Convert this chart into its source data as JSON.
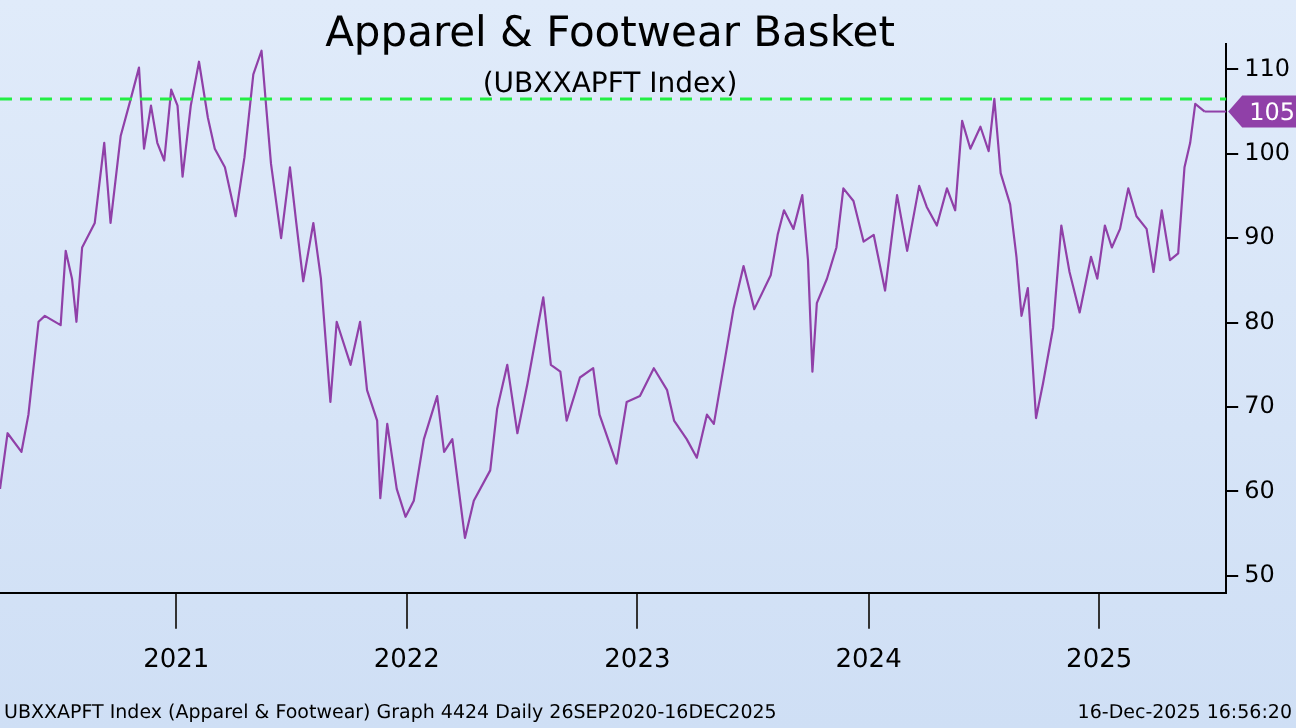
{
  "chart_data": {
    "type": "line",
    "title": "Apparel & Footwear Basket",
    "subtitle": "(UBXXAPFT Index)",
    "x": [
      "2020-09-26",
      "2020-10-08",
      "2020-10-30",
      "2020-11-10",
      "2020-11-19",
      "2020-11-26",
      "2020-12-06",
      "2020-12-31",
      "2021-01-08",
      "2021-01-18",
      "2021-01-25",
      "2021-02-03",
      "2021-02-23",
      "2021-03-10",
      "2021-03-20",
      "2021-04-05",
      "2021-04-21",
      "2021-05-04",
      "2021-05-12",
      "2021-05-23",
      "2021-06-02",
      "2021-06-13",
      "2021-06-24",
      "2021-07-04",
      "2021-07-12",
      "2021-07-25",
      "2021-08-07",
      "2021-08-21",
      "2021-09-01",
      "2021-09-17",
      "2021-10-04",
      "2021-10-18",
      "2021-11-01",
      "2021-11-14",
      "2021-11-22",
      "2021-11-29",
      "2021-12-15",
      "2021-12-29",
      "2022-01-08",
      "2022-01-19",
      "2022-02-04",
      "2022-02-16",
      "2022-03-03",
      "2022-03-13",
      "2022-04-04",
      "2022-04-19",
      "2022-04-30",
      "2022-05-16",
      "2022-05-21",
      "2022-06-01",
      "2022-06-16",
      "2022-06-30",
      "2022-07-13",
      "2022-07-29",
      "2022-08-19",
      "2022-08-30",
      "2022-09-12",
      "2022-10-02",
      "2022-10-16",
      "2022-11-11",
      "2022-11-22",
      "2022-12-08",
      "2022-12-24",
      "2023-01-09",
      "2023-01-25",
      "2023-02-03",
      "2023-02-15",
      "2023-03-02",
      "2023-03-12",
      "2023-04-02",
      "2023-04-23",
      "2023-05-03",
      "2023-05-30",
      "2023-06-15",
      "2023-07-06",
      "2023-07-28",
      "2023-08-18",
      "2023-08-29",
      "2023-09-18",
      "2023-10-04",
      "2023-10-20",
      "2023-10-31",
      "2023-11-16",
      "2023-12-01",
      "2023-12-17",
      "2024-01-03",
      "2024-01-29",
      "2024-02-09",
      "2024-02-19",
      "2024-03-05",
      "2024-03-19",
      "2024-03-28",
      "2024-04-04",
      "2024-04-11",
      "2024-04-27",
      "2024-05-12",
      "2024-05-23",
      "2024-06-08",
      "2024-06-24",
      "2024-07-10",
      "2024-07-28",
      "2024-08-16",
      "2024-09-01",
      "2024-09-20",
      "2024-10-02",
      "2024-10-18",
      "2024-11-03",
      "2024-11-16",
      "2024-11-27",
      "2024-12-10",
      "2024-12-26",
      "2025-01-08",
      "2025-01-17",
      "2025-01-27",
      "2025-02-11",
      "2025-02-21",
      "2025-03-01",
      "2025-03-11",
      "2025-03-24",
      "2025-04-04",
      "2025-04-20",
      "2025-05-03",
      "2025-05-16",
      "2025-06-01",
      "2025-06-19",
      "2025-06-29",
      "2025-07-11",
      "2025-07-22",
      "2025-08-04",
      "2025-08-17",
      "2025-08-30",
      "2025-09-15",
      "2025-09-26",
      "2025-10-09",
      "2025-10-22",
      "2025-11-04",
      "2025-11-14",
      "2025-11-23",
      "2025-12-01",
      "2025-12-16"
    ],
    "series": [
      {
        "color": "#9040a8",
        "values": [
          60.3,
          66.9,
          64.7,
          69.1,
          75.3,
          80.1,
          80.8,
          79.7,
          88.5,
          85.2,
          80.1,
          88.9,
          91.8,
          101.3,
          91.8,
          102.1,
          106.5,
          110.2,
          100.6,
          105.7,
          101.3,
          99.2,
          107.6,
          105.7,
          97.3,
          105.7,
          110.9,
          104.3,
          100.6,
          98.4,
          92.6,
          99.6,
          109.4,
          112.2,
          105,
          98.8,
          90,
          98.4,
          91.8,
          84.9,
          91.8,
          85.2,
          70.6,
          80.1,
          75,
          80.1,
          72,
          68.4,
          59.2,
          68,
          60.3,
          57,
          58.9,
          66.2,
          71.3,
          64.7,
          66.2,
          54.5,
          58.9,
          62.5,
          69.8,
          75,
          66.9,
          72.8,
          79.4,
          83,
          75,
          74.2,
          68.4,
          73.5,
          74.6,
          69.1,
          63.3,
          70.6,
          71.3,
          74.6,
          72,
          68.4,
          66.2,
          64,
          69.1,
          68,
          75,
          81.6,
          86.7,
          81.6,
          85.6,
          90.4,
          93.3,
          91.1,
          95.1,
          87.4,
          74.2,
          82.3,
          85.2,
          88.9,
          95.9,
          94.4,
          89.6,
          90.4,
          83.8,
          95.1,
          88.5,
          96.2,
          93.7,
          91.5,
          95.9,
          93.3,
          103.9,
          100.6,
          103.2,
          100.3,
          106.5,
          97.7,
          94,
          87.8,
          80.8,
          84.1,
          68.7,
          72.8,
          79.4,
          91.5,
          86,
          81.2,
          87.8,
          85.2,
          91.5,
          88.9,
          91.1,
          95.9,
          92.6,
          91.1,
          86,
          93.3,
          87.4,
          88.2,
          98.4,
          101.3,
          105.9,
          105
        ]
      }
    ],
    "xlim": [
      "2020-09-26",
      "2026-01-19"
    ],
    "xticks": [
      {
        "value": "2021-07-02",
        "label": "2021"
      },
      {
        "value": "2022-07-02",
        "label": "2022"
      },
      {
        "value": "2023-07-02",
        "label": "2023"
      },
      {
        "value": "2024-07-02",
        "label": "2024"
      },
      {
        "value": "2025-07-02",
        "label": "2025"
      }
    ],
    "ylim": [
      48,
      113
    ],
    "yticks": [
      50,
      60,
      70,
      80,
      90,
      100,
      110
    ],
    "ref_lines": [
      {
        "axis": "y",
        "value": 106.5,
        "color": "#22ee44",
        "line_style": "dashed"
      }
    ],
    "annotations": [
      {
        "text": "105",
        "x": "2025-12-16",
        "y": 105
      },
      "UBXXAPFT Index (Apparel & Footwear) Graph 4424 Daily 26SEP2020-16DEC2025",
      "16-Dec-2025 16:56:20"
    ],
    "grid": false,
    "legend": false,
    "marker": "none",
    "line_style": "solid"
  }
}
